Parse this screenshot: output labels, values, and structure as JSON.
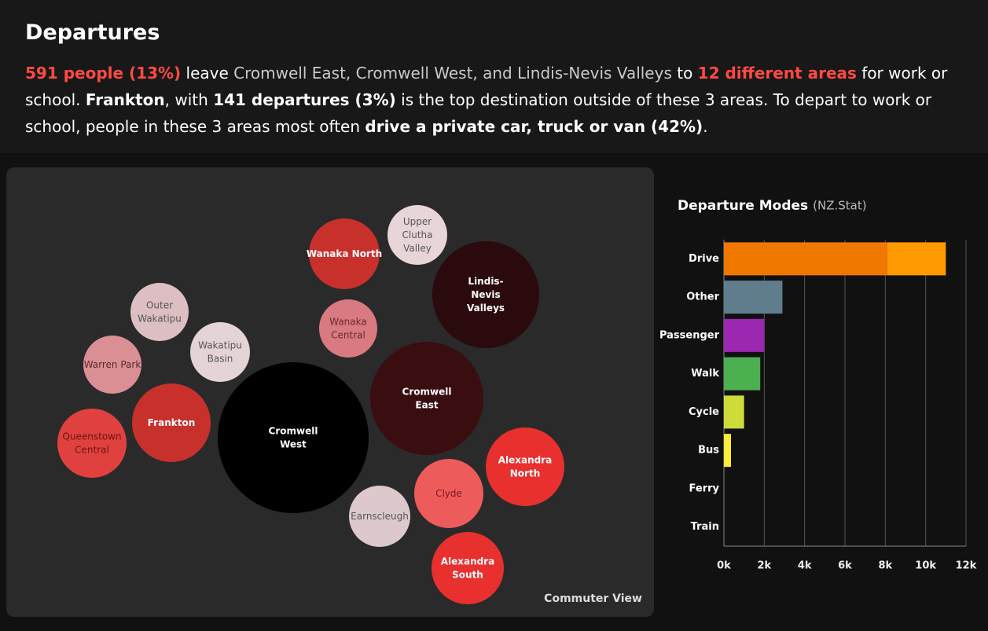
{
  "header": {
    "title": "Departures",
    "summary": [
      {
        "text": "591 people (13%)",
        "style": "red"
      },
      {
        "text": " leave ",
        "style": "plain"
      },
      {
        "text": "Cromwell East, Cromwell West, and Lindis-Nevis Valleys",
        "style": "muted"
      },
      {
        "text": " to ",
        "style": "plain"
      },
      {
        "text": "12 different areas",
        "style": "red"
      },
      {
        "text": " for work or school. ",
        "style": "plain"
      },
      {
        "text": "Frankton",
        "style": "bold"
      },
      {
        "text": ", with ",
        "style": "plain"
      },
      {
        "text": "141 departures (3%)",
        "style": "bold"
      },
      {
        "text": " is the top destination outside of these 3 areas. To depart to work or school, people in these 3 areas most often ",
        "style": "plain"
      },
      {
        "text": "drive a private car, truck or van (42%)",
        "style": "bold"
      },
      {
        "text": ".",
        "style": "plain"
      }
    ]
  },
  "bubbles": {
    "nodes": [
      {
        "label": "Upper Clutha Valley"
      },
      {
        "label": "Wanaka North"
      },
      {
        "label": "Lindis-Nevis Valleys"
      },
      {
        "label": "Outer Wakatipu"
      },
      {
        "label": "Wanaka Central"
      },
      {
        "label": "Wakatipu Basin"
      },
      {
        "label": "Warren Park"
      },
      {
        "label": "Cromwell East"
      },
      {
        "label": "Frankton"
      },
      {
        "label": "Queenstown Central"
      },
      {
        "label": "Cromwell West"
      },
      {
        "label": "Alexandra North"
      },
      {
        "label": "Clyde"
      },
      {
        "label": "Earnscleugh"
      },
      {
        "label": "Alexandra South"
      }
    ],
    "view_label": "Commuter View"
  },
  "chart_data": {
    "type": "bar",
    "orientation": "horizontal",
    "title": "Departure Modes",
    "subtitle": "(NZ.Stat)",
    "categories": [
      "Drive",
      "Other",
      "Passenger",
      "Walk",
      "Cycle",
      "Bus",
      "Ferry",
      "Train"
    ],
    "series": [
      {
        "colors": [
          "#f07800",
          "#5f7d8c",
          "#9c27b0",
          "#4caf50",
          "#cddc39",
          "#ffeb3b",
          "#ffeb3b",
          "#ffeb3b"
        ],
        "values": [
          8100,
          2900,
          2000,
          1800,
          1000,
          350,
          0,
          0
        ]
      },
      {
        "colors": [
          "#ff9a00",
          null,
          null,
          null,
          null,
          null,
          null,
          null
        ],
        "values": [
          2900,
          null,
          null,
          null,
          null,
          null,
          null,
          null
        ]
      }
    ],
    "xlim": [
      0,
      12000
    ],
    "xticks": [
      {
        "value": 0,
        "label": "0k"
      },
      {
        "value": 2000,
        "label": "2k"
      },
      {
        "value": 4000,
        "label": "4k"
      },
      {
        "value": 6000,
        "label": "6k"
      },
      {
        "value": 8000,
        "label": "8k"
      },
      {
        "value": 10000,
        "label": "10k"
      },
      {
        "value": 12000,
        "label": "12k"
      }
    ],
    "grid": true
  }
}
